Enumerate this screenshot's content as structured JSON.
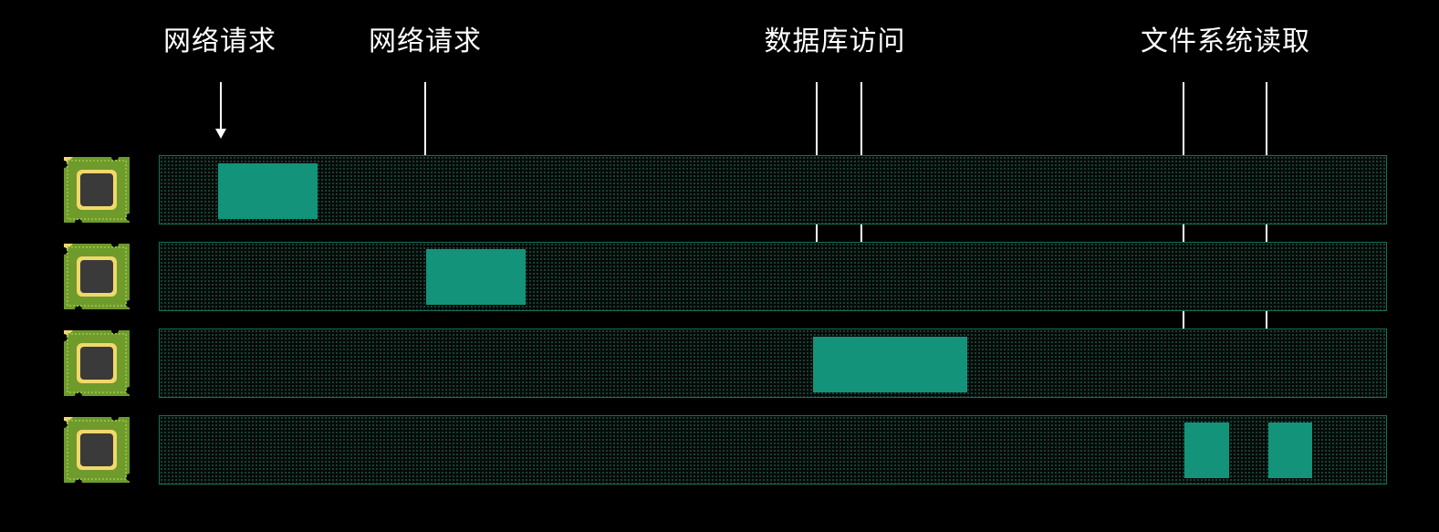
{
  "labels": {
    "network_request_1": "网络请求",
    "network_request_2": "网络请求",
    "database_access": "数据库访问",
    "filesystem_read": "文件系统读取"
  },
  "colors": {
    "background": "#000000",
    "lane_border": "#13705c",
    "block": "#13937a",
    "cpu_board": "#6f9a2c",
    "cpu_frame": "#f2d76a",
    "cpu_die": "#3a3a3a",
    "arrow": "#ffffff"
  },
  "icons": {
    "processor": "cpu-chip-icon",
    "arrow": "down-arrow-icon"
  }
}
